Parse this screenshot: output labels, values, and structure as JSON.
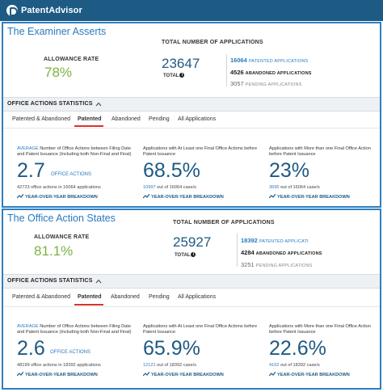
{
  "brand": {
    "name": "PatentAdvisor"
  },
  "panels": [
    {
      "title": "The Examiner Asserts",
      "allowance_label": "ALLOWANCE RATE",
      "allowance_value": "78%",
      "total_label": "TOTAL NUMBER OF APPLICATIONS",
      "total_value": "23647",
      "total_sub": "TOTAL",
      "patented_count": "16064",
      "patented_label": "PATENTED APPLICATIONS",
      "abandoned_count": "4526",
      "abandoned_label": "ABANDONED APPLICATIONS",
      "pending_count": "3057",
      "pending_label": "PENDING APPLICATIONS",
      "stats_label": "OFFICE ACTIONS STATISTICS",
      "tabs": [
        "Patented & Abandoned",
        "Patented",
        "Abandoned",
        "Pending",
        "All Applications"
      ],
      "active_tab": "Patented",
      "cards": [
        {
          "desc_avg": "AVERAGE",
          "desc_line1": " Number of Office Actions between Filing Date",
          "desc_line2": "and Patent Issuance (Including both Non-Final and Final)",
          "value": "2.7",
          "value_sub": "OFFICE ACTIONS",
          "detail": "42723 office actions in 16064 applications",
          "yoy": "YEAR-OVER-YEAR BREAKDOWN"
        },
        {
          "desc_line1": "Applications with At Least one Final Office Actions before",
          "desc_line2": "Patent Issuance",
          "value": "68.5%",
          "detail_hl": "10997",
          "detail": " out of 16064 case/s",
          "yoy": "YEAR-OVER-YEAR BREAKDOWN"
        },
        {
          "desc_line1": "Applications with More than one Final Office Action",
          "desc_line2": "before Patent Issuance",
          "value": "23%",
          "detail_hl": "3695",
          "detail": " out of 16064 case/s",
          "yoy": "YEAR-OVER-YEAR BREAKDOWN"
        }
      ]
    },
    {
      "title": "The Office Action States",
      "allowance_label": "ALLOWANCE RATE",
      "allowance_value": "81.1%",
      "total_label": "TOTAL NUMBER OF APPLICATIONS",
      "total_value": "25927",
      "total_sub": "TOTAL",
      "patented_count": "18392",
      "patented_label": "PATENTED APPLICATI",
      "abandoned_count": "4284",
      "abandoned_label": "ABANDONED APPLICATIONS",
      "pending_count": "3251",
      "pending_label": "PENDING APPLICATIONS",
      "stats_label": "OFFICE ACTIONS STATISTICS",
      "tabs": [
        "Patented & Abandoned",
        "Patented",
        "Abandoned",
        "Pending",
        "All Applications"
      ],
      "active_tab": "Patented",
      "cards": [
        {
          "desc_avg": "AVERAGE",
          "desc_line1": " Number of Office Actions between Filing Date",
          "desc_line2": "and Patent Issuance (Including both Non-Final and Final)",
          "value": "2.6",
          "value_sub": "OFFICE ACTIONS",
          "detail": "48199 office actions in 18392 applications",
          "yoy": "YEAR-OVER-YEAR BREAKDOWN"
        },
        {
          "desc_line1": "Applications with At Least one Final Office Actions before",
          "desc_line2": "Patent Issuance",
          "value": "65.9%",
          "detail_hl": "12121",
          "detail": " out of 18392 case/s",
          "yoy": "YEAR-OVER-YEAR BREAKDOWN"
        },
        {
          "desc_line1": "Applications with More than one Final Office Action",
          "desc_line2": "before Patent Issuance",
          "value": "22.6%",
          "detail_hl": "4162",
          "detail": " out of 18392 case/s",
          "yoy": "YEAR-OVER-YEAR BREAKDOWN"
        }
      ]
    }
  ],
  "colors": {
    "brand": "#1d5a84",
    "accent": "#2a7abf",
    "allowance": "#7cb342",
    "active_tab": "#d9342b"
  },
  "icons": {
    "info": "info-icon",
    "collapse": "chevron-up-icon",
    "yoy": "trend-arrows-icon"
  }
}
